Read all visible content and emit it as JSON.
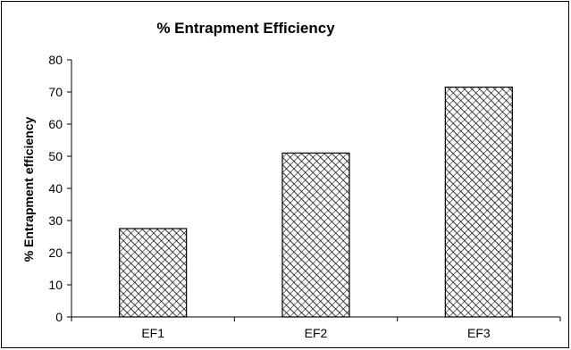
{
  "chart_data": {
    "type": "bar",
    "title": "% Entrapment Efficiency",
    "xlabel": "",
    "ylabel": "% Entrapment efficiency",
    "categories": [
      "EF1",
      "EF2",
      "EF3"
    ],
    "values": [
      27.5,
      51,
      71.5
    ],
    "ylim": [
      0,
      80
    ],
    "y_ticks": [
      0,
      10,
      20,
      30,
      40,
      50,
      60,
      70,
      80
    ],
    "grid": false,
    "legend": "none",
    "bar_fill": "crosshatch-pattern",
    "colors": {
      "bar_outline": "#000000",
      "hatch": "#000000",
      "background": "#ffffff"
    }
  }
}
